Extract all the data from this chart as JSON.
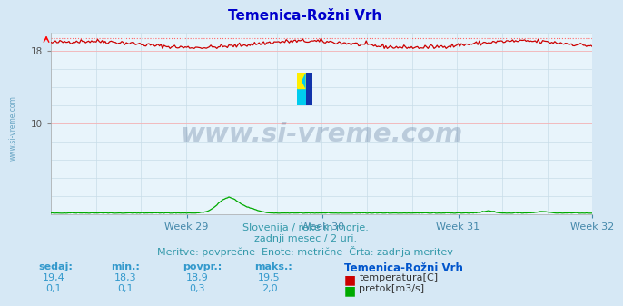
{
  "title": "Temenica-Rožni Vrh",
  "title_color": "#0000cc",
  "bg_color": "#d6e8f5",
  "plot_bg_color": "#e8f4fb",
  "grid_color": "#c8dde8",
  "grid_hline_color": "#ffaaaa",
  "xlabel_color": "#4488aa",
  "ylim": [
    0,
    20
  ],
  "weeks": [
    "Week 29",
    "Week 30",
    "Week 31",
    "Week 32"
  ],
  "n_points": 360,
  "temp_min": 18.3,
  "temp_max": 19.5,
  "temp_avg": 18.9,
  "temp_color": "#cc0000",
  "temp_dashed_color": "#ff6666",
  "flow_color": "#00aa00",
  "flow_max": 2.0,
  "watermark": "www.si-vreme.com",
  "watermark_color": "#1a3a6a",
  "subtitle1": "Slovenija / reke in morje.",
  "subtitle2": "zadnji mesec / 2 uri.",
  "subtitle3": "Meritve: povprečne  Enote: metrične  Črta: zadnja meritev",
  "subtitle_color": "#3399aa",
  "legend_title": "Temenica-Rožni Vrh",
  "legend_title_color": "#0055cc",
  "table_headers": [
    "sedaj:",
    "min.:",
    "povpr.:",
    "maks.:"
  ],
  "table_row1": [
    "19,4",
    "18,3",
    "18,9",
    "19,5"
  ],
  "table_row2": [
    "0,1",
    "0,1",
    "0,3",
    "2,0"
  ],
  "table_color": "#3399cc",
  "label_temp": "temperatura[C]",
  "label_flow": "pretok[m3/s]",
  "side_label": "www.si-vreme.com",
  "side_label_color": "#5599bb"
}
